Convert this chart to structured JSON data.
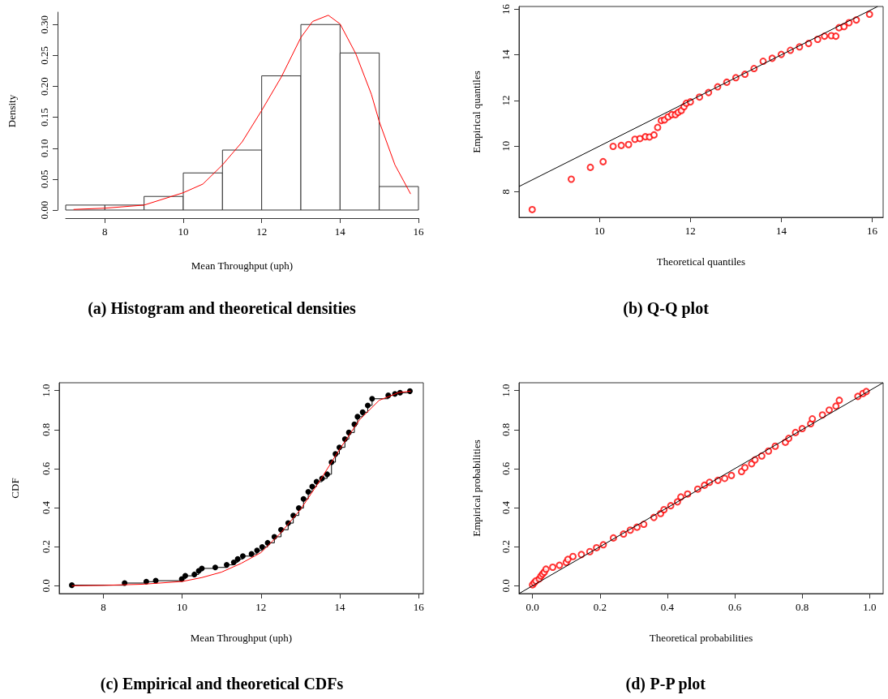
{
  "chart_data": [
    {
      "type": "histogram",
      "title": "(a) Histogram and theoretical densities",
      "xlabel": "Mean Throughput (uph)",
      "ylabel": "Density",
      "bins": [
        7,
        8,
        9,
        10,
        11,
        12,
        13,
        14,
        15,
        16
      ],
      "values": [
        0.008,
        0.008,
        0.022,
        0.06,
        0.097,
        0.217,
        0.3,
        0.254,
        0.038
      ],
      "color": "#ffffff",
      "xlim": [
        7,
        16
      ],
      "ylim": [
        0,
        0.32
      ],
      "xticks": [
        8,
        10,
        12,
        14,
        16
      ],
      "yticks": [
        {
          "value": 0,
          "label": "0.00"
        },
        {
          "value": 0.05,
          "label": "0.05"
        },
        {
          "value": 0.1,
          "label": "0.10"
        },
        {
          "value": 0.15,
          "label": "0.15"
        },
        {
          "value": 0.2,
          "label": "0.20"
        },
        {
          "value": 0.25,
          "label": "0.25"
        },
        {
          "value": 0.3,
          "label": "0.30"
        }
      ],
      "series": [
        {
          "type": "line",
          "color": "#ff0000",
          "x": [
            7.2,
            8,
            9,
            10,
            10.5,
            11,
            11.5,
            12,
            12.5,
            13,
            13.3,
            13.7,
            14,
            14.4,
            14.8,
            15,
            15.4,
            15.8
          ],
          "values": [
            0.001,
            0.003,
            0.008,
            0.028,
            0.042,
            0.073,
            0.11,
            0.161,
            0.215,
            0.279,
            0.305,
            0.315,
            0.301,
            0.253,
            0.187,
            0.143,
            0.073,
            0.026
          ]
        }
      ]
    },
    {
      "type": "scatter",
      "title": "(b) Q-Q plot",
      "xlabel": "Theoretical quantiles",
      "ylabel": "Empirical quantiles",
      "xlim": [
        8.23,
        16.24
      ],
      "ylim": [
        6.88,
        16.12
      ],
      "xticks": [
        10,
        12,
        14,
        16
      ],
      "yticks": [
        8,
        10,
        12,
        14,
        16
      ],
      "series": [
        {
          "type": "scatter",
          "marker": "circle",
          "color": "#ff0000",
          "x": [
            8.52,
            9.38,
            9.8,
            10.08,
            10.3,
            10.48,
            10.64,
            10.78,
            10.89,
            11.01,
            11.1,
            11.2,
            11.28,
            11.36,
            11.43,
            11.51,
            11.59,
            11.67,
            11.73,
            11.8,
            11.86,
            11.91,
            12,
            12.2,
            12.4,
            12.6,
            12.8,
            13,
            13.2,
            13.4,
            13.6,
            13.8,
            14,
            14.2,
            14.4,
            14.6,
            14.8,
            14.95,
            15.1,
            15.2,
            15.27,
            15.38,
            15.49,
            15.65,
            15.94
          ],
          "values": [
            7.22,
            8.55,
            9.07,
            9.32,
            9.99,
            10.03,
            10.07,
            10.3,
            10.33,
            10.41,
            10.4,
            10.49,
            10.82,
            11.12,
            11.15,
            11.28,
            11.38,
            11.38,
            11.48,
            11.56,
            11.73,
            11.88,
            11.94,
            12.15,
            12.35,
            12.6,
            12.8,
            13,
            13.15,
            13.4,
            13.72,
            13.85,
            14.02,
            14.2,
            14.35,
            14.5,
            14.68,
            14.82,
            14.84,
            14.82,
            15.19,
            15.24,
            15.41,
            15.53,
            15.78
          ]
        },
        {
          "type": "line",
          "color": "#000000",
          "x": [
            8.23,
            16.12
          ],
          "values": [
            8.23,
            16.12
          ]
        }
      ]
    },
    {
      "type": "step",
      "title": "(c) Empirical and theoretical CDFs",
      "xlabel": "Mean Throughput (uph)",
      "ylabel": "CDF",
      "xlim": [
        6.88,
        16.12
      ],
      "ylim": [
        -0.04,
        1.04
      ],
      "xticks": [
        8,
        10,
        12,
        14,
        16
      ],
      "yticks": [
        {
          "value": 0,
          "label": "0.0"
        },
        {
          "value": 0.2,
          "label": "0.2"
        },
        {
          "value": 0.4,
          "label": "0.4"
        },
        {
          "value": 0.6,
          "label": "0.6"
        },
        {
          "value": 0.8,
          "label": "0.8"
        },
        {
          "value": 1,
          "label": "1.0"
        }
      ],
      "series": [
        {
          "type": "line",
          "color": "#ff0000",
          "x": [
            7.2,
            8,
            9,
            10,
            10.5,
            11,
            11.5,
            12,
            12.5,
            13,
            13.5,
            14,
            14.5,
            15,
            15.5,
            15.8
          ],
          "values": [
            0,
            0.002,
            0.008,
            0.022,
            0.042,
            0.07,
            0.115,
            0.17,
            0.27,
            0.39,
            0.54,
            0.7,
            0.85,
            0.95,
            0.99,
            0.997
          ]
        },
        {
          "type": "step",
          "marker": "circle",
          "color": "#000000",
          "x": [
            7.2,
            8.54,
            9.09,
            9.33,
            9.99,
            10.08,
            10.31,
            10.42,
            10.5,
            10.84,
            11.13,
            11.31,
            11.41,
            11.54,
            11.76,
            11.9,
            12.03,
            12.17,
            12.34,
            12.51,
            12.69,
            12.82,
            12.96,
            13.08,
            13.2,
            13.3,
            13.41,
            13.55,
            13.68,
            13.79,
            13.89,
            13.99,
            14.13,
            14.23,
            14.37,
            14.45,
            14.58,
            14.71,
            14.82,
            15.23,
            15.4,
            15.53,
            15.78
          ],
          "values": [
            0.003,
            0.014,
            0.021,
            0.026,
            0.035,
            0.051,
            0.058,
            0.076,
            0.089,
            0.094,
            0.107,
            0.12,
            0.137,
            0.152,
            0.163,
            0.181,
            0.199,
            0.22,
            0.251,
            0.287,
            0.321,
            0.36,
            0.398,
            0.445,
            0.481,
            0.508,
            0.533,
            0.55,
            0.571,
            0.633,
            0.675,
            0.709,
            0.751,
            0.785,
            0.827,
            0.866,
            0.889,
            0.924,
            0.958,
            0.975,
            0.983,
            0.989,
            0.997
          ]
        }
      ]
    },
    {
      "type": "scatter",
      "title": "(d) P-P plot",
      "xlabel": "Theoretical probabilities",
      "ylabel": "Empirical probabilities",
      "xlim": [
        -0.04,
        1.04
      ],
      "ylim": [
        -0.04,
        1.04
      ],
      "xticks": [
        {
          "value": 0,
          "label": "0.0"
        },
        {
          "value": 0.2,
          "label": "0.2"
        },
        {
          "value": 0.4,
          "label": "0.4"
        },
        {
          "value": 0.6,
          "label": "0.6"
        },
        {
          "value": 0.8,
          "label": "0.8"
        },
        {
          "value": 1,
          "label": "1.0"
        }
      ],
      "yticks": [
        {
          "value": 0,
          "label": "0.0"
        },
        {
          "value": 0.2,
          "label": "0.2"
        },
        {
          "value": 0.4,
          "label": "0.4"
        },
        {
          "value": 0.6,
          "label": "0.6"
        },
        {
          "value": 0.8,
          "label": "0.8"
        },
        {
          "value": 1,
          "label": "1.0"
        }
      ],
      "series": [
        {
          "type": "scatter",
          "marker": "circle",
          "color": "#ff0000",
          "x": [
            0,
            0.005,
            0.01,
            0.02,
            0.025,
            0.03,
            0.035,
            0.04,
            0.06,
            0.08,
            0.1,
            0.105,
            0.12,
            0.145,
            0.17,
            0.19,
            0.21,
            0.24,
            0.27,
            0.29,
            0.31,
            0.33,
            0.36,
            0.38,
            0.39,
            0.41,
            0.43,
            0.44,
            0.46,
            0.49,
            0.51,
            0.525,
            0.55,
            0.57,
            0.59,
            0.62,
            0.63,
            0.65,
            0.66,
            0.68,
            0.7,
            0.72,
            0.75,
            0.76,
            0.78,
            0.8,
            0.825,
            0.83,
            0.86,
            0.88,
            0.9,
            0.91,
            0.965,
            0.98,
            0.99
          ],
          "values": [
            0.005,
            0.015,
            0.025,
            0.035,
            0.05,
            0.06,
            0.07,
            0.085,
            0.095,
            0.105,
            0.12,
            0.135,
            0.15,
            0.16,
            0.175,
            0.195,
            0.21,
            0.245,
            0.265,
            0.285,
            0.3,
            0.315,
            0.35,
            0.37,
            0.39,
            0.41,
            0.43,
            0.455,
            0.47,
            0.495,
            0.515,
            0.53,
            0.54,
            0.55,
            0.565,
            0.585,
            0.605,
            0.625,
            0.645,
            0.665,
            0.69,
            0.715,
            0.735,
            0.755,
            0.785,
            0.805,
            0.83,
            0.855,
            0.875,
            0.9,
            0.92,
            0.95,
            0.97,
            0.985,
            0.995
          ]
        },
        {
          "type": "line",
          "color": "#000000",
          "x": [
            -0.04,
            1.04
          ],
          "values": [
            -0.04,
            1.04
          ]
        }
      ]
    }
  ]
}
